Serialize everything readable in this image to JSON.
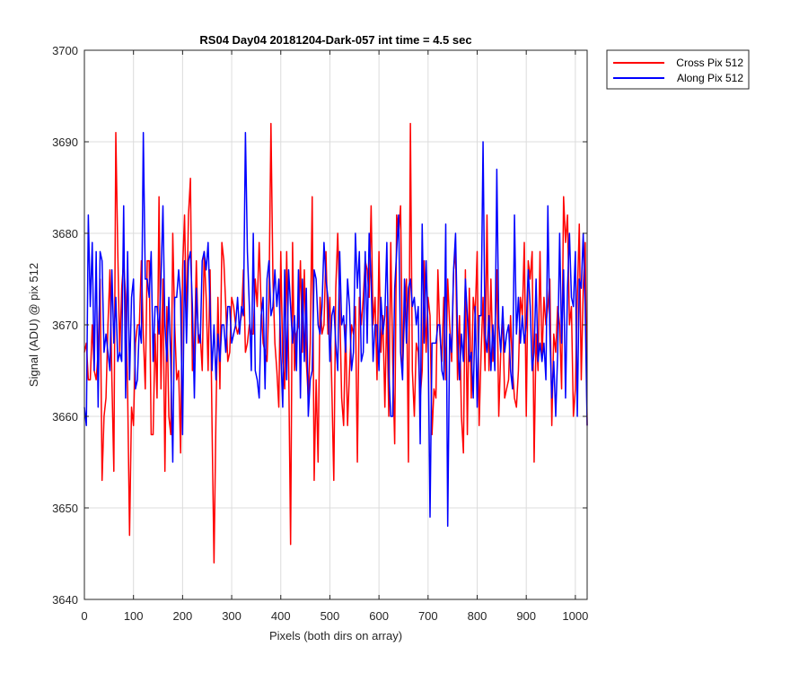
{
  "chart_data": {
    "type": "line",
    "title": "RS04 Day04 20181204-Dark-057 int time = 4.5 sec",
    "xlabel": "Pixels (both dirs on array)",
    "ylabel": "Signal (ADU) @ pix 512",
    "xlim": [
      0,
      1024
    ],
    "ylim": [
      3640,
      3700
    ],
    "xticks": [
      0,
      100,
      200,
      300,
      400,
      500,
      600,
      700,
      800,
      900,
      1000
    ],
    "yticks": [
      3640,
      3650,
      3660,
      3670,
      3680,
      3690,
      3700
    ],
    "grid": true,
    "legend_position": "outside-top-right",
    "series": [
      {
        "name": "Cross Pix 512",
        "color": "#ff0000",
        "mean": 3669,
        "spread": 7,
        "seed": 17,
        "sample_step": 4,
        "peaks": [
          [
            63,
            3691
          ],
          [
            92,
            3647
          ],
          [
            262,
            3644
          ],
          [
            379,
            3692
          ],
          [
            421,
            3646
          ],
          [
            663,
            3692
          ]
        ]
      },
      {
        "name": "Along Pix 512",
        "color": "#0000ff",
        "mean": 3670,
        "spread": 6,
        "seed": 42,
        "sample_step": 4,
        "peaks": [
          [
            120,
            3691
          ],
          [
            327,
            3691
          ],
          [
            703,
            3649
          ],
          [
            741,
            3648
          ],
          [
            810,
            3690
          ]
        ]
      }
    ]
  }
}
